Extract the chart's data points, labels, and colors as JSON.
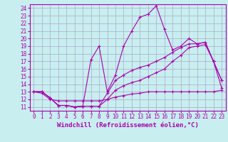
{
  "background_color": "#c8eef0",
  "grid_color": "#aaaacc",
  "line_color": "#aa00aa",
  "xlabel": "Windchill (Refroidissement éolien,°C)",
  "xlabel_fontsize": 6.5,
  "tick_fontsize": 5.5,
  "xlim": [
    -0.5,
    23.5
  ],
  "ylim": [
    10.5,
    24.5
  ],
  "yticks": [
    11,
    12,
    13,
    14,
    15,
    16,
    17,
    18,
    19,
    20,
    21,
    22,
    23,
    24
  ],
  "xticks": [
    0,
    1,
    2,
    3,
    4,
    5,
    6,
    7,
    8,
    9,
    10,
    11,
    12,
    13,
    14,
    15,
    16,
    17,
    18,
    19,
    20,
    21,
    22,
    23
  ],
  "series": [
    [
      13.0,
      13.0,
      12.2,
      11.2,
      11.2,
      11.0,
      11.1,
      17.2,
      19.0,
      13.0,
      15.2,
      19.0,
      21.0,
      22.8,
      23.2,
      24.3,
      21.2,
      18.5,
      19.0,
      20.0,
      19.3,
      19.5,
      17.0,
      14.5
    ],
    [
      13.0,
      13.0,
      12.2,
      11.2,
      11.2,
      11.0,
      11.1,
      11.1,
      11.1,
      12.8,
      14.5,
      15.2,
      15.8,
      16.2,
      16.5,
      17.0,
      17.5,
      18.2,
      18.8,
      19.3,
      19.3,
      19.5,
      17.0,
      14.5
    ],
    [
      13.0,
      13.0,
      12.2,
      11.2,
      11.2,
      11.0,
      11.1,
      11.1,
      11.1,
      12.0,
      13.2,
      13.8,
      14.2,
      14.5,
      15.0,
      15.5,
      16.0,
      17.0,
      17.8,
      18.8,
      19.0,
      19.2,
      17.0,
      13.5
    ],
    [
      13.0,
      12.8,
      12.0,
      11.8,
      11.8,
      11.8,
      11.8,
      11.8,
      11.8,
      12.0,
      12.3,
      12.5,
      12.7,
      12.8,
      13.0,
      13.0,
      13.0,
      13.0,
      13.0,
      13.0,
      13.0,
      13.0,
      13.0,
      13.2
    ]
  ]
}
